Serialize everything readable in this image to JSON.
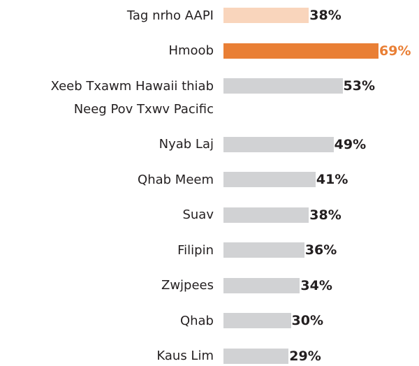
{
  "chart_data": {
    "type": "bar",
    "orientation": "horizontal",
    "categories": [
      "Tag nrho AAPI",
      "Hmoob",
      "Xeeb Txawm Hawaii thiab\nNeeg Pov Txwv Pacific",
      "Nyab Laj",
      "Qhab Meem",
      "Suav",
      "Filipin",
      "Zwjpees",
      "Qhab",
      "Kaus Lim"
    ],
    "values": [
      38,
      69,
      53,
      49,
      41,
      38,
      36,
      34,
      30,
      29
    ],
    "value_labels": [
      "38%",
      "69%",
      "53%",
      "49%",
      "41%",
      "38%",
      "36%",
      "34%",
      "30%",
      "29%"
    ],
    "colors": [
      "#f9d5bc",
      "#e97f35",
      "#d1d2d4",
      "#d1d2d4",
      "#d1d2d4",
      "#d1d2d4",
      "#d1d2d4",
      "#d1d2d4",
      "#d1d2d4",
      "#d1d2d4"
    ],
    "value_label_colors": [
      "#231f20",
      "#e97f35",
      "#231f20",
      "#231f20",
      "#231f20",
      "#231f20",
      "#231f20",
      "#231f20",
      "#231f20",
      "#231f20"
    ]
  }
}
